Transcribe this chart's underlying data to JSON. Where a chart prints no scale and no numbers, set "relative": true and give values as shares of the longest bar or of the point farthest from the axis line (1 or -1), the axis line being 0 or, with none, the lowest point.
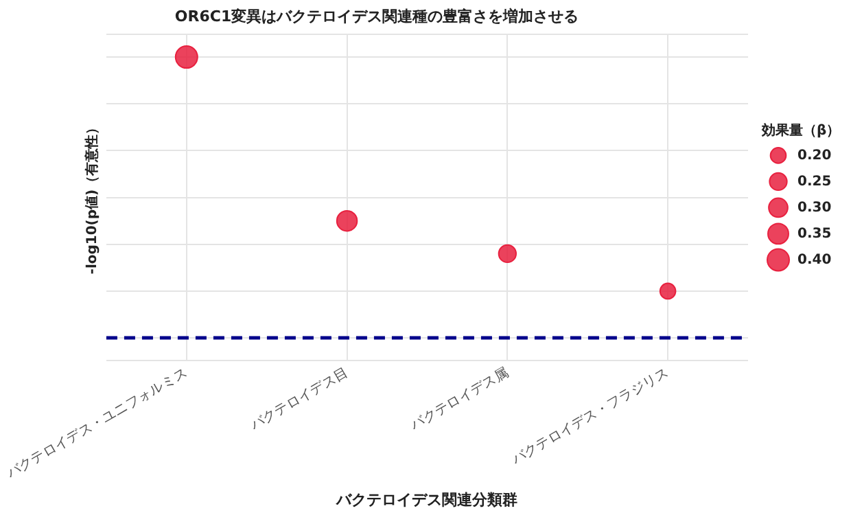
{
  "chart_data": {
    "type": "bubble",
    "title": "OR6C1変異はバクテロイデス関連種の豊富さを増加させる",
    "xlabel": "バクテロイデス関連分類群",
    "ylabel": "-log10(p値)（有意性）",
    "legend_title": "効果量（β）",
    "categories": [
      "バクテロイデス・ユニフォルミス",
      "バクテロイデス目",
      "バクテロイデス属",
      "バクテロイデス・フラジリス"
    ],
    "values": [
      1,
      0.3,
      0.16,
      0
    ],
    "sizes": [
      0.4,
      0.34,
      0.25,
      0.2
    ],
    "size_legend": [
      {
        "value": 0.2,
        "label": "0.20"
      },
      0.25,
      {
        "value": 0.3,
        "label": "0.30"
      },
      0.35,
      {
        "value": 0.4,
        "label": "0.40"
      }
    ],
    "color": "#e8213f",
    "relative": true,
    "grid": true,
    "ref_lines": [
      {
        "axis": "y",
        "value": -0.2,
        "color": "#00008b",
        "line_style": "dashed"
      }
    ]
  }
}
